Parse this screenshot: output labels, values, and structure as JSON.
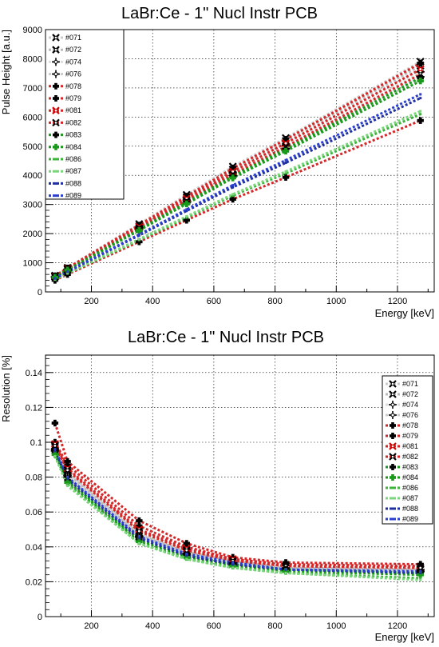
{
  "chart_data": [
    {
      "type": "line",
      "title": "LaBr:Ce - 1\"  Nucl Instr PCB",
      "xlabel": "Energy [keV]",
      "ylabel": "Pulse Height [a.u.]",
      "xlim": [
        50,
        1320
      ],
      "ylim": [
        0,
        9000
      ],
      "xticks": [
        200,
        400,
        600,
        800,
        1000,
        1200
      ],
      "yticks": [
        0,
        1000,
        2000,
        3000,
        4000,
        5000,
        6000,
        7000,
        8000,
        9000
      ],
      "grid": true,
      "legend": "top-left",
      "x": [
        81,
        122,
        356,
        511,
        662,
        835,
        1275
      ],
      "series": [
        {
          "name": "#071",
          "color": "#000000",
          "line": "#cccccc",
          "marker": "x",
          "values": [
            560,
            830,
            2330,
            3330,
            4300,
            5280,
            7900
          ]
        },
        {
          "name": "#072",
          "color": "#000000",
          "line": "#bbbbbb",
          "marker": "x",
          "values": [
            540,
            800,
            2260,
            3250,
            4200,
            5180,
            7760
          ]
        },
        {
          "name": "#074",
          "color": "#000000",
          "line": "#dddddd",
          "marker": "star",
          "values": [
            520,
            780,
            2200,
            3150,
            4080,
            5030,
            7550
          ]
        },
        {
          "name": "#076",
          "color": "#000000",
          "line": "#cccccc",
          "marker": "star",
          "values": [
            510,
            760,
            2150,
            3080,
            3990,
            4920,
            7380
          ]
        },
        {
          "name": "#078",
          "color": "#000000",
          "line": "#d62728",
          "marker": "cross",
          "values": [
            550,
            820,
            2290,
            3280,
            4240,
            5230,
            7850
          ]
        },
        {
          "name": "#079",
          "color": "#000000",
          "line": "#d62728",
          "marker": "cross",
          "values": [
            400,
            600,
            1720,
            2460,
            3180,
            3930,
            5880
          ]
        },
        {
          "name": "#081",
          "color": "#cc0000",
          "line": "#d62728",
          "marker": "x",
          "values": [
            530,
            790,
            2230,
            3200,
            4130,
            5100,
            7640
          ]
        },
        {
          "name": "#082",
          "color": "#000000",
          "line": "#d62728",
          "marker": "x",
          "values": [
            520,
            770,
            2180,
            3120,
            4030,
            4980,
            7470
          ]
        },
        {
          "name": "#083",
          "color": "#000000",
          "line": "#1a9a1a",
          "marker": "cross",
          "values": [
            510,
            760,
            2140,
            3070,
            3970,
            4900,
            7350
          ]
        },
        {
          "name": "#084",
          "color": "#1a9a1a",
          "line": "#1a9a1a",
          "marker": "cross",
          "values": [
            500,
            750,
            2110,
            3020,
            3910,
            4830,
            7240
          ]
        },
        {
          "name": "#086",
          "color": "#3cb43c",
          "line": "#3cb43c",
          "marker": "none",
          "values": [
            420,
            630,
            1780,
            2550,
            3300,
            4070,
            6100
          ]
        },
        {
          "name": "#087",
          "color": "#7ad67a",
          "line": "#7ad67a",
          "marker": "none",
          "values": [
            430,
            640,
            1810,
            2590,
            3350,
            4130,
            6200
          ]
        },
        {
          "name": "#088",
          "color": "#1f2f9f",
          "line": "#1f2f9f",
          "marker": "none",
          "values": [
            460,
            690,
            1940,
            2780,
            3590,
            4430,
            6650
          ]
        },
        {
          "name": "#089",
          "color": "#2a3fd0",
          "line": "#2a3fd0",
          "marker": "none",
          "values": [
            470,
            700,
            1970,
            2830,
            3660,
            4520,
            6780
          ]
        }
      ]
    },
    {
      "type": "line",
      "title": "LaBr:Ce - 1\"  Nucl Instr PCB",
      "xlabel": "Energy [keV]",
      "ylabel": "Resolution [%]",
      "xlim": [
        50,
        1320
      ],
      "ylim": [
        0,
        0.15
      ],
      "xticks": [
        200,
        400,
        600,
        800,
        1000,
        1200
      ],
      "yticks": [
        0,
        0.02,
        0.04,
        0.06,
        0.08,
        0.1,
        0.12,
        0.14
      ],
      "yticklabels": [
        "0",
        "0.02",
        "0.04",
        "0.06",
        "0.08",
        "0.1",
        "0.12",
        "0.14"
      ],
      "grid": true,
      "legend": "right",
      "x": [
        81,
        122,
        356,
        511,
        662,
        835,
        1275
      ],
      "series": [
        {
          "name": "#071",
          "color": "#000000",
          "line": "#cccccc",
          "marker": "x",
          "values": [
            0.097,
            0.083,
            0.048,
            0.037,
            0.031,
            0.028,
            0.027
          ]
        },
        {
          "name": "#072",
          "color": "#000000",
          "line": "#bbbbbb",
          "marker": "x",
          "values": [
            0.098,
            0.082,
            0.047,
            0.037,
            0.032,
            0.028,
            0.027
          ]
        },
        {
          "name": "#074",
          "color": "#000000",
          "line": "#dddddd",
          "marker": "star",
          "values": [
            0.096,
            0.081,
            0.046,
            0.036,
            0.031,
            0.028,
            0.027
          ]
        },
        {
          "name": "#076",
          "color": "#000000",
          "line": "#cccccc",
          "marker": "star",
          "values": [
            0.095,
            0.08,
            0.046,
            0.036,
            0.03,
            0.027,
            0.026
          ]
        },
        {
          "name": "#078",
          "color": "#000000",
          "line": "#d62728",
          "marker": "cross",
          "values": [
            0.1,
            0.087,
            0.052,
            0.04,
            0.033,
            0.03,
            0.029
          ]
        },
        {
          "name": "#079",
          "color": "#000000",
          "line": "#d62728",
          "marker": "cross",
          "values": [
            0.111,
            0.089,
            0.055,
            0.042,
            0.034,
            0.031,
            0.03
          ]
        },
        {
          "name": "#081",
          "color": "#cc0000",
          "line": "#d62728",
          "marker": "x",
          "values": [
            0.099,
            0.085,
            0.05,
            0.039,
            0.033,
            0.029,
            0.028
          ]
        },
        {
          "name": "#082",
          "color": "#000000",
          "line": "#d62728",
          "marker": "x",
          "values": [
            0.098,
            0.084,
            0.049,
            0.038,
            0.032,
            0.029,
            0.028
          ]
        },
        {
          "name": "#083",
          "color": "#000000",
          "line": "#1a9a1a",
          "marker": "cross",
          "values": [
            0.094,
            0.078,
            0.044,
            0.035,
            0.03,
            0.027,
            0.025
          ]
        },
        {
          "name": "#084",
          "color": "#1a9a1a",
          "line": "#1a9a1a",
          "marker": "cross",
          "values": [
            0.093,
            0.077,
            0.043,
            0.034,
            0.029,
            0.026,
            0.024
          ]
        },
        {
          "name": "#086",
          "color": "#3cb43c",
          "line": "#3cb43c",
          "marker": "none",
          "values": [
            0.092,
            0.076,
            0.042,
            0.033,
            0.028,
            0.025,
            0.022
          ]
        },
        {
          "name": "#087",
          "color": "#7ad67a",
          "line": "#7ad67a",
          "marker": "none",
          "values": [
            0.092,
            0.075,
            0.042,
            0.033,
            0.028,
            0.025,
            0.021
          ]
        },
        {
          "name": "#088",
          "color": "#1f2f9f",
          "line": "#1f2f9f",
          "marker": "none",
          "values": [
            0.095,
            0.079,
            0.045,
            0.035,
            0.03,
            0.027,
            0.025
          ]
        },
        {
          "name": "#089",
          "color": "#2a3fd0",
          "line": "#2a3fd0",
          "marker": "none",
          "values": [
            0.096,
            0.08,
            0.046,
            0.036,
            0.031,
            0.027,
            0.026
          ]
        }
      ]
    }
  ]
}
